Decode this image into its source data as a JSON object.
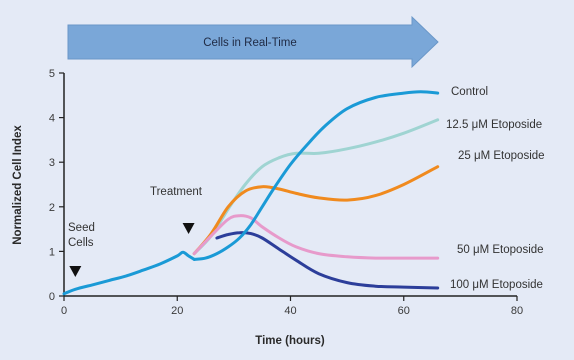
{
  "chart_data": {
    "type": "line",
    "title": "",
    "banner": "Cells in Real-Time",
    "xlabel": "Time (hours)",
    "ylabel": "Normalized Cell Index",
    "xlim": [
      0,
      80
    ],
    "ylim": [
      0,
      5
    ],
    "xticks": [
      0,
      20,
      40,
      60,
      80
    ],
    "yticks": [
      0,
      1,
      2,
      3,
      4,
      5
    ],
    "grid": false,
    "legend_placement": "right, inline at line ends",
    "annotations": {
      "seed": {
        "label_line1": "Seed",
        "label_line2": "Cells",
        "x": 2,
        "marker": "triangle-down"
      },
      "treatment": {
        "label": "Treatment",
        "x": 22,
        "marker": "triangle-down"
      }
    },
    "shared_baseline": {
      "x": [
        0,
        2,
        5,
        8,
        11,
        14,
        17,
        20,
        21,
        22,
        23
      ],
      "y": [
        0.05,
        0.15,
        0.25,
        0.35,
        0.45,
        0.58,
        0.72,
        0.9,
        0.98,
        0.9,
        0.82
      ]
    },
    "series": [
      {
        "name": "Control",
        "color": "#1a9ad6",
        "x": [
          23,
          25,
          27,
          29,
          31,
          33,
          35,
          37,
          40,
          43,
          46,
          50,
          55,
          60,
          63,
          66
        ],
        "y": [
          0.82,
          0.85,
          0.95,
          1.1,
          1.3,
          1.6,
          2.0,
          2.4,
          2.95,
          3.4,
          3.8,
          4.2,
          4.45,
          4.55,
          4.58,
          4.55
        ]
      },
      {
        "name": "12.5 μM Etoposide",
        "color": "#9fd4d2",
        "x": [
          23,
          26,
          29,
          32,
          35,
          38,
          41,
          45,
          50,
          55,
          60,
          66
        ],
        "y": [
          0.95,
          1.35,
          1.95,
          2.5,
          2.9,
          3.1,
          3.2,
          3.2,
          3.3,
          3.45,
          3.65,
          3.95
        ]
      },
      {
        "name": "25 μM Etoposide",
        "color": "#f08a1e",
        "x": [
          23,
          26,
          29,
          32,
          35,
          38,
          41,
          45,
          50,
          55,
          60,
          66
        ],
        "y": [
          0.95,
          1.4,
          2.0,
          2.35,
          2.45,
          2.4,
          2.3,
          2.2,
          2.15,
          2.25,
          2.5,
          2.9
        ]
      },
      {
        "name": "50 μM Etoposide",
        "color": "#e79acb",
        "x": [
          23,
          26,
          29,
          31,
          33,
          35,
          38,
          41,
          45,
          50,
          55,
          60,
          66
        ],
        "y": [
          0.95,
          1.35,
          1.72,
          1.8,
          1.75,
          1.55,
          1.3,
          1.1,
          0.95,
          0.88,
          0.85,
          0.85,
          0.85
        ]
      },
      {
        "name": "100 μM Etoposide",
        "color": "#2c3e9a",
        "x": [
          27,
          29,
          31,
          33,
          35,
          38,
          41,
          45,
          50,
          55,
          60,
          66
        ],
        "y": [
          1.3,
          1.38,
          1.42,
          1.4,
          1.3,
          1.05,
          0.8,
          0.5,
          0.3,
          0.22,
          0.2,
          0.18
        ]
      }
    ]
  }
}
